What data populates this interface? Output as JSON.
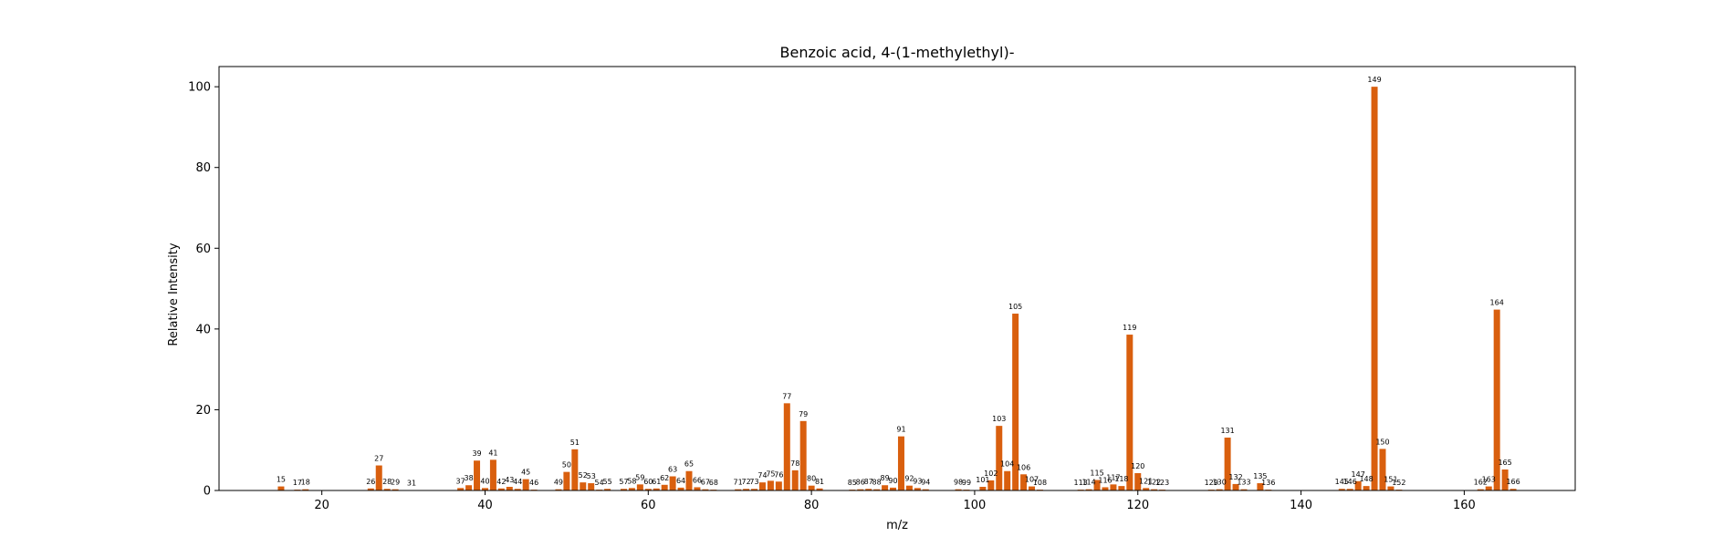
{
  "chart_data": {
    "type": "bar",
    "title": "Benzoic acid, 4-(1-methylethyl)-",
    "xlabel": "m/z",
    "ylabel": "Relative Intensity",
    "xlim": [
      7.4,
      173.6
    ],
    "ylim": [
      0,
      105
    ],
    "xticks": [
      20,
      40,
      60,
      80,
      100,
      120,
      140,
      160
    ],
    "yticks": [
      0,
      20,
      40,
      60,
      80,
      100
    ],
    "bar_color": "#d95f0e",
    "bars": [
      {
        "mz": 15,
        "intensity": 1.0
      },
      {
        "mz": 17,
        "intensity": 0.2
      },
      {
        "mz": 18,
        "intensity": 0.3
      },
      {
        "mz": 26,
        "intensity": 0.5
      },
      {
        "mz": 27,
        "intensity": 6.2
      },
      {
        "mz": 28,
        "intensity": 0.4
      },
      {
        "mz": 29,
        "intensity": 0.3
      },
      {
        "mz": 31,
        "intensity": 0.1
      },
      {
        "mz": 37,
        "intensity": 0.6
      },
      {
        "mz": 38,
        "intensity": 1.3
      },
      {
        "mz": 39,
        "intensity": 7.4
      },
      {
        "mz": 40,
        "intensity": 0.6
      },
      {
        "mz": 41,
        "intensity": 7.6
      },
      {
        "mz": 42,
        "intensity": 0.5
      },
      {
        "mz": 43,
        "intensity": 0.9
      },
      {
        "mz": 44,
        "intensity": 0.4
      },
      {
        "mz": 45,
        "intensity": 2.8
      },
      {
        "mz": 46,
        "intensity": 0.2
      },
      {
        "mz": 49,
        "intensity": 0.3
      },
      {
        "mz": 50,
        "intensity": 4.6
      },
      {
        "mz": 51,
        "intensity": 10.2
      },
      {
        "mz": 52,
        "intensity": 2.0
      },
      {
        "mz": 53,
        "intensity": 1.8
      },
      {
        "mz": 54,
        "intensity": 0.2
      },
      {
        "mz": 55,
        "intensity": 0.4
      },
      {
        "mz": 57,
        "intensity": 0.4
      },
      {
        "mz": 58,
        "intensity": 0.6
      },
      {
        "mz": 59,
        "intensity": 1.5
      },
      {
        "mz": 60,
        "intensity": 0.4
      },
      {
        "mz": 61,
        "intensity": 0.5
      },
      {
        "mz": 62,
        "intensity": 1.4
      },
      {
        "mz": 63,
        "intensity": 3.5
      },
      {
        "mz": 64,
        "intensity": 0.7
      },
      {
        "mz": 65,
        "intensity": 4.8
      },
      {
        "mz": 66,
        "intensity": 0.8
      },
      {
        "mz": 67,
        "intensity": 0.3
      },
      {
        "mz": 68,
        "intensity": 0.2
      },
      {
        "mz": 71,
        "intensity": 0.3
      },
      {
        "mz": 72,
        "intensity": 0.4
      },
      {
        "mz": 73,
        "intensity": 0.4
      },
      {
        "mz": 74,
        "intensity": 2.0
      },
      {
        "mz": 75,
        "intensity": 2.4
      },
      {
        "mz": 76,
        "intensity": 2.2
      },
      {
        "mz": 77,
        "intensity": 21.6
      },
      {
        "mz": 78,
        "intensity": 5.0
      },
      {
        "mz": 79,
        "intensity": 17.2
      },
      {
        "mz": 80,
        "intensity": 1.2
      },
      {
        "mz": 81,
        "intensity": 0.5
      },
      {
        "mz": 85,
        "intensity": 0.2
      },
      {
        "mz": 86,
        "intensity": 0.3
      },
      {
        "mz": 87,
        "intensity": 0.4
      },
      {
        "mz": 88,
        "intensity": 0.3
      },
      {
        "mz": 89,
        "intensity": 1.3
      },
      {
        "mz": 90,
        "intensity": 0.7
      },
      {
        "mz": 91,
        "intensity": 13.4
      },
      {
        "mz": 92,
        "intensity": 1.2
      },
      {
        "mz": 93,
        "intensity": 0.6
      },
      {
        "mz": 94,
        "intensity": 0.3
      },
      {
        "mz": 98,
        "intensity": 0.3
      },
      {
        "mz": 99,
        "intensity": 0.2
      },
      {
        "mz": 101,
        "intensity": 0.9
      },
      {
        "mz": 102,
        "intensity": 2.5
      },
      {
        "mz": 103,
        "intensity": 16.0
      },
      {
        "mz": 104,
        "intensity": 4.8
      },
      {
        "mz": 105,
        "intensity": 43.8
      },
      {
        "mz": 106,
        "intensity": 4.0
      },
      {
        "mz": 107,
        "intensity": 1.0
      },
      {
        "mz": 108,
        "intensity": 0.2
      },
      {
        "mz": 113,
        "intensity": 0.2
      },
      {
        "mz": 114,
        "intensity": 0.3
      },
      {
        "mz": 115,
        "intensity": 2.6
      },
      {
        "mz": 116,
        "intensity": 0.8
      },
      {
        "mz": 117,
        "intensity": 1.5
      },
      {
        "mz": 118,
        "intensity": 1.1
      },
      {
        "mz": 119,
        "intensity": 38.6
      },
      {
        "mz": 120,
        "intensity": 4.3
      },
      {
        "mz": 121,
        "intensity": 0.6
      },
      {
        "mz": 122,
        "intensity": 0.3
      },
      {
        "mz": 123,
        "intensity": 0.2
      },
      {
        "mz": 129,
        "intensity": 0.2
      },
      {
        "mz": 130,
        "intensity": 0.3
      },
      {
        "mz": 131,
        "intensity": 13.1
      },
      {
        "mz": 132,
        "intensity": 1.6
      },
      {
        "mz": 133,
        "intensity": 0.3
      },
      {
        "mz": 135,
        "intensity": 1.8
      },
      {
        "mz": 136,
        "intensity": 0.2
      },
      {
        "mz": 145,
        "intensity": 0.4
      },
      {
        "mz": 146,
        "intensity": 0.4
      },
      {
        "mz": 147,
        "intensity": 2.3
      },
      {
        "mz": 148,
        "intensity": 1.1
      },
      {
        "mz": 149,
        "intensity": 100.0
      },
      {
        "mz": 150,
        "intensity": 10.3
      },
      {
        "mz": 151,
        "intensity": 1.0
      },
      {
        "mz": 152,
        "intensity": 0.2
      },
      {
        "mz": 162,
        "intensity": 0.3
      },
      {
        "mz": 163,
        "intensity": 1.0
      },
      {
        "mz": 164,
        "intensity": 44.8
      },
      {
        "mz": 165,
        "intensity": 5.2
      },
      {
        "mz": 166,
        "intensity": 0.4
      }
    ]
  }
}
